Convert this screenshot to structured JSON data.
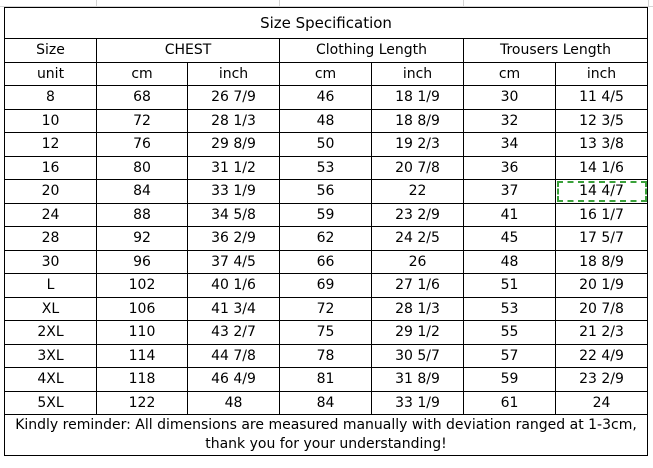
{
  "title": "Size Specification",
  "headers": {
    "size": "Size",
    "chest": "CHEST",
    "clothing_length": "Clothing Length",
    "trousers_length": "Trousers Length"
  },
  "units": [
    "unit",
    "cm",
    "inch",
    "cm",
    "inch",
    "cm",
    "inch"
  ],
  "rows": [
    [
      "8",
      "68",
      "26 7/9",
      "46",
      "18 1/9",
      "30",
      "11 4/5"
    ],
    [
      "10",
      "72",
      "28 1/3",
      "48",
      "18 8/9",
      "32",
      "12 3/5"
    ],
    [
      "12",
      "76",
      "29 8/9",
      "50",
      "19 2/3",
      "34",
      "13 3/8"
    ],
    [
      "16",
      "80",
      "31 1/2",
      "53",
      "20 7/8",
      "36",
      "14 1/6"
    ],
    [
      "20",
      "84",
      "33 1/9",
      "56",
      "22",
      "37",
      "14 4/7"
    ],
    [
      "24",
      "88",
      "34 5/8",
      "59",
      "23 2/9",
      "41",
      "16 1/7"
    ],
    [
      "28",
      "92",
      "36 2/9",
      "62",
      "24 2/5",
      "45",
      "17 5/7"
    ],
    [
      "30",
      "96",
      "37 4/5",
      "66",
      "26",
      "48",
      "18 8/9"
    ],
    [
      "L",
      "102",
      "40 1/6",
      "69",
      "27 1/6",
      "51",
      "20 1/9"
    ],
    [
      "XL",
      "106",
      "41 3/4",
      "72",
      "28 1/3",
      "53",
      "20 7/8"
    ],
    [
      "2XL",
      "110",
      "43 2/7",
      "75",
      "29 1/2",
      "55",
      "21 2/3"
    ],
    [
      "3XL",
      "114",
      "44 7/8",
      "78",
      "30 5/7",
      "57",
      "22 4/9"
    ],
    [
      "4XL",
      "118",
      "46 4/9",
      "81",
      "31 8/9",
      "59",
      "23 2/9"
    ],
    [
      "5XL",
      "122",
      "48",
      "84",
      "33 1/9",
      "61",
      "24"
    ]
  ],
  "selected_cell": {
    "row": 4,
    "col": 6,
    "border_color": "#3aa13a"
  },
  "note": "Kindly reminder: All dimensions are measured manually with deviation ranged at 1-3cm, thank you for your understanding!"
}
